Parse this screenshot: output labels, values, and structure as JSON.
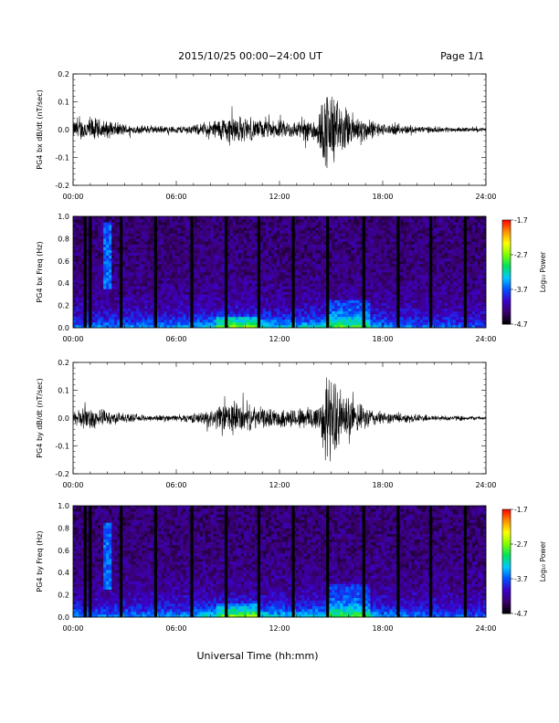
{
  "header": {
    "title": "2015/10/25  00:00−24:00 UT",
    "page": "Page 1/1"
  },
  "xlabel": "Universal Time (hh:mm)",
  "time_ticks": [
    "00:00",
    "06:00",
    "12:00",
    "18:00",
    "24:00"
  ],
  "colorbar": {
    "label": "Log₁₀ Power",
    "ticks": [
      "-1.7",
      "-2.7",
      "-3.7",
      "-4.7"
    ],
    "range": [
      -4.7,
      -1.7
    ],
    "colors": [
      "#000000",
      "#3a006a",
      "#3c00c8",
      "#0050ff",
      "#00c8ff",
      "#00e060",
      "#80ff00",
      "#ffff00",
      "#ff9000",
      "#ff0000"
    ]
  },
  "chart_data": [
    {
      "type": "line",
      "title": "",
      "ylabel": "PG4 bx dB/dt (nT/sec)",
      "xlim": [
        0,
        24
      ],
      "ylim": [
        -0.2,
        0.2
      ],
      "yticks": [
        "0.2",
        "0.1",
        "0.0",
        "-0.1",
        "-0.2"
      ],
      "activity": [
        {
          "t": 0.0,
          "amp": 0.03
        },
        {
          "t": 1.0,
          "amp": 0.045
        },
        {
          "t": 2.0,
          "amp": 0.03
        },
        {
          "t": 3.5,
          "amp": 0.015
        },
        {
          "t": 6.0,
          "amp": 0.012
        },
        {
          "t": 7.5,
          "amp": 0.02
        },
        {
          "t": 9.3,
          "amp": 0.055
        },
        {
          "t": 10.0,
          "amp": 0.04
        },
        {
          "t": 11.5,
          "amp": 0.03
        },
        {
          "t": 13.0,
          "amp": 0.03
        },
        {
          "t": 14.2,
          "amp": 0.05
        },
        {
          "t": 14.8,
          "amp": 0.16
        },
        {
          "t": 15.5,
          "amp": 0.09
        },
        {
          "t": 16.5,
          "amp": 0.05
        },
        {
          "t": 18.0,
          "amp": 0.02
        },
        {
          "t": 21.0,
          "amp": 0.01
        },
        {
          "t": 24.0,
          "amp": 0.006
        }
      ]
    },
    {
      "type": "heatmap",
      "title": "",
      "ylabel": "PG4 bx Freq (Hz)",
      "xlim": [
        0,
        24
      ],
      "ylim": [
        0,
        1.0
      ],
      "yticks": [
        "1.0",
        "0.8",
        "0.6",
        "0.4",
        "0.2",
        "0.0"
      ],
      "data_gaps_hours": [
        0.7,
        1.0,
        2.8,
        4.8,
        6.9,
        8.9,
        10.8,
        12.8,
        14.8,
        16.9,
        18.9,
        20.8,
        22.8
      ],
      "features": [
        {
          "t": 2.0,
          "freq": 0.8,
          "kind": "narrow-band"
        },
        {
          "t": 9.5,
          "freq": 0.1,
          "kind": "enhancement"
        },
        {
          "t": 16.0,
          "freq": 0.25,
          "kind": "enhancement"
        }
      ]
    },
    {
      "type": "line",
      "title": "",
      "ylabel": "PG4 by dB/dt (nT/sec)",
      "xlim": [
        0,
        24
      ],
      "ylim": [
        -0.2,
        0.2
      ],
      "yticks": [
        "0.2",
        "0.1",
        "0.0",
        "-0.1",
        "-0.2"
      ],
      "activity": [
        {
          "t": 0.0,
          "amp": 0.025
        },
        {
          "t": 1.0,
          "amp": 0.04
        },
        {
          "t": 2.0,
          "amp": 0.025
        },
        {
          "t": 3.5,
          "amp": 0.012
        },
        {
          "t": 6.0,
          "amp": 0.01
        },
        {
          "t": 7.5,
          "amp": 0.02
        },
        {
          "t": 9.3,
          "amp": 0.06
        },
        {
          "t": 10.0,
          "amp": 0.045
        },
        {
          "t": 11.5,
          "amp": 0.03
        },
        {
          "t": 13.0,
          "amp": 0.035
        },
        {
          "t": 14.2,
          "amp": 0.05
        },
        {
          "t": 14.8,
          "amp": 0.16
        },
        {
          "t": 15.5,
          "amp": 0.1
        },
        {
          "t": 16.5,
          "amp": 0.05
        },
        {
          "t": 18.0,
          "amp": 0.02
        },
        {
          "t": 21.0,
          "amp": 0.01
        },
        {
          "t": 24.0,
          "amp": 0.006
        }
      ]
    },
    {
      "type": "heatmap",
      "title": "",
      "ylabel": "PG4 by Freq (Hz)",
      "xlim": [
        0,
        24
      ],
      "ylim": [
        0,
        1.0
      ],
      "yticks": [
        "1.0",
        "0.8",
        "0.6",
        "0.4",
        "0.2",
        "0.0"
      ],
      "data_gaps_hours": [
        0.7,
        1.0,
        2.8,
        4.8,
        6.9,
        8.9,
        10.8,
        12.8,
        14.8,
        16.9,
        18.9,
        20.8,
        22.8
      ],
      "features": [
        {
          "t": 2.0,
          "freq": 0.7,
          "kind": "narrow-band"
        },
        {
          "t": 9.5,
          "freq": 0.12,
          "kind": "enhancement"
        },
        {
          "t": 16.0,
          "freq": 0.3,
          "kind": "enhancement"
        }
      ]
    }
  ]
}
